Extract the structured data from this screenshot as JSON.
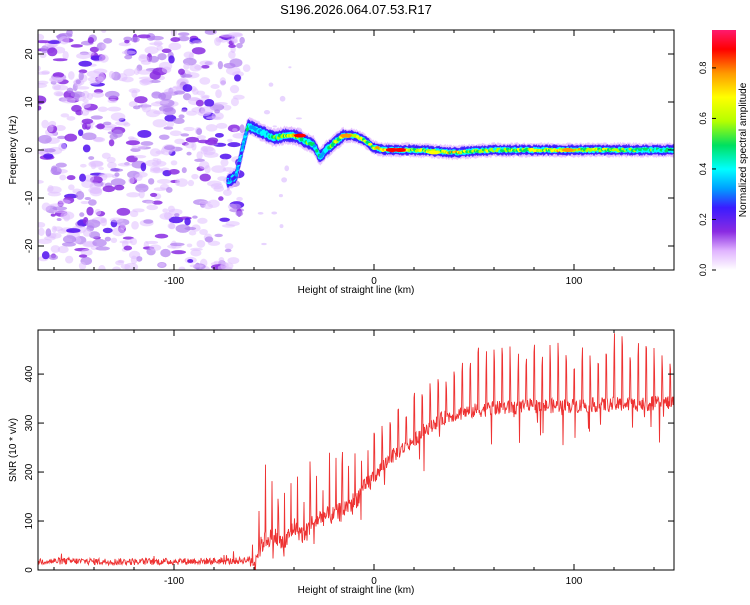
{
  "title": "S196.2026.064.07.53.R17",
  "chart_data": [
    {
      "type": "heatmap",
      "title": "S196.2026.064.07.53.R17",
      "xlabel": "Height of straight line (km)",
      "ylabel": "Frequency (Hz)",
      "xlim": [
        -168,
        150
      ],
      "ylim": [
        -25,
        25
      ],
      "xticks": [
        -100,
        0,
        100
      ],
      "yticks": [
        -20,
        -10,
        0,
        10,
        20
      ],
      "x_tick_labels": [
        "-100",
        "0",
        "100"
      ],
      "y_tick_labels": [
        "-20",
        "-10",
        "0",
        "10",
        "20"
      ],
      "colorbar": {
        "label": "Normalized spectral amplitude",
        "range": [
          0,
          0.95
        ],
        "ticks": [
          0.0,
          0.2,
          0.4,
          0.6,
          0.8
        ],
        "tick_labels": [
          "0.0",
          "0.2",
          "0.4",
          "0.6",
          "0.8"
        ],
        "colors": [
          "#ffffff",
          "#e0b3ff",
          "#8a2be2",
          "#3a1cff",
          "#00a0ff",
          "#00ffff",
          "#00e060",
          "#b5ff00",
          "#ffff00",
          "#ff9900",
          "#ff0000",
          "#ff1a6e"
        ]
      },
      "noise_region_x": [
        -168,
        -67
      ],
      "ridge": {
        "x": [
          -73,
          -69,
          -66,
          -63,
          -60,
          -55,
          -50,
          -45,
          -40,
          -35,
          -30,
          -27,
          -24,
          -20,
          -15,
          -10,
          -5,
          0,
          5,
          10,
          20,
          40,
          60,
          80,
          100,
          120,
          150
        ],
        "freq": [
          -6.5,
          -5.5,
          0,
          5,
          4.5,
          3.5,
          2.5,
          3,
          3,
          2,
          1,
          -1.5,
          0,
          1.5,
          3,
          3,
          2,
          0.5,
          0,
          0,
          0,
          -0.5,
          0,
          0,
          0,
          0,
          0
        ],
        "amplitude": [
          0.3,
          0.35,
          0.35,
          0.45,
          0.4,
          0.45,
          0.55,
          0.6,
          0.7,
          0.55,
          0.5,
          0.45,
          0.5,
          0.6,
          0.75,
          0.7,
          0.65,
          0.7,
          0.8,
          0.85,
          0.6,
          0.7,
          0.6,
          0.65,
          0.75,
          0.6,
          0.5
        ]
      }
    },
    {
      "type": "line",
      "xlabel": "Height of straight line (km)",
      "ylabel": "SNR (10 * v/v)",
      "xlim": [
        -168,
        150
      ],
      "ylim": [
        0,
        490
      ],
      "xticks": [
        -100,
        0,
        100
      ],
      "yticks": [
        0,
        100,
        200,
        300,
        400
      ],
      "x_tick_labels": [
        "-100",
        "0",
        "100"
      ],
      "y_tick_labels": [
        "0",
        "100",
        "200",
        "300",
        "400"
      ],
      "series": [
        {
          "name": "SNR",
          "color": "#ee3333",
          "x": [
            -168,
            -150,
            -130,
            -110,
            -90,
            -70,
            -60,
            -55,
            -50,
            -45,
            -40,
            -35,
            -30,
            -25,
            -20,
            -15,
            -10,
            -5,
            0,
            5,
            10,
            15,
            20,
            25,
            30,
            35,
            40,
            50,
            60,
            70,
            80,
            90,
            100,
            110,
            120,
            130,
            140,
            150
          ],
          "baseline": [
            18,
            18,
            17,
            17,
            18,
            18,
            22,
            60,
            70,
            50,
            90,
            70,
            100,
            110,
            110,
            125,
            140,
            165,
            190,
            215,
            235,
            250,
            265,
            285,
            300,
            310,
            318,
            325,
            330,
            332,
            335,
            335,
            335,
            337,
            338,
            338,
            340,
            342
          ],
          "spike_peak": [
            25,
            30,
            25,
            25,
            25,
            30,
            60,
            240,
            180,
            150,
            250,
            180,
            250,
            180,
            280,
            230,
            260,
            250,
            280,
            300,
            320,
            330,
            360,
            380,
            390,
            400,
            420,
            450,
            455,
            450,
            455,
            460,
            455,
            460,
            480,
            460,
            455,
            450
          ]
        }
      ]
    }
  ]
}
